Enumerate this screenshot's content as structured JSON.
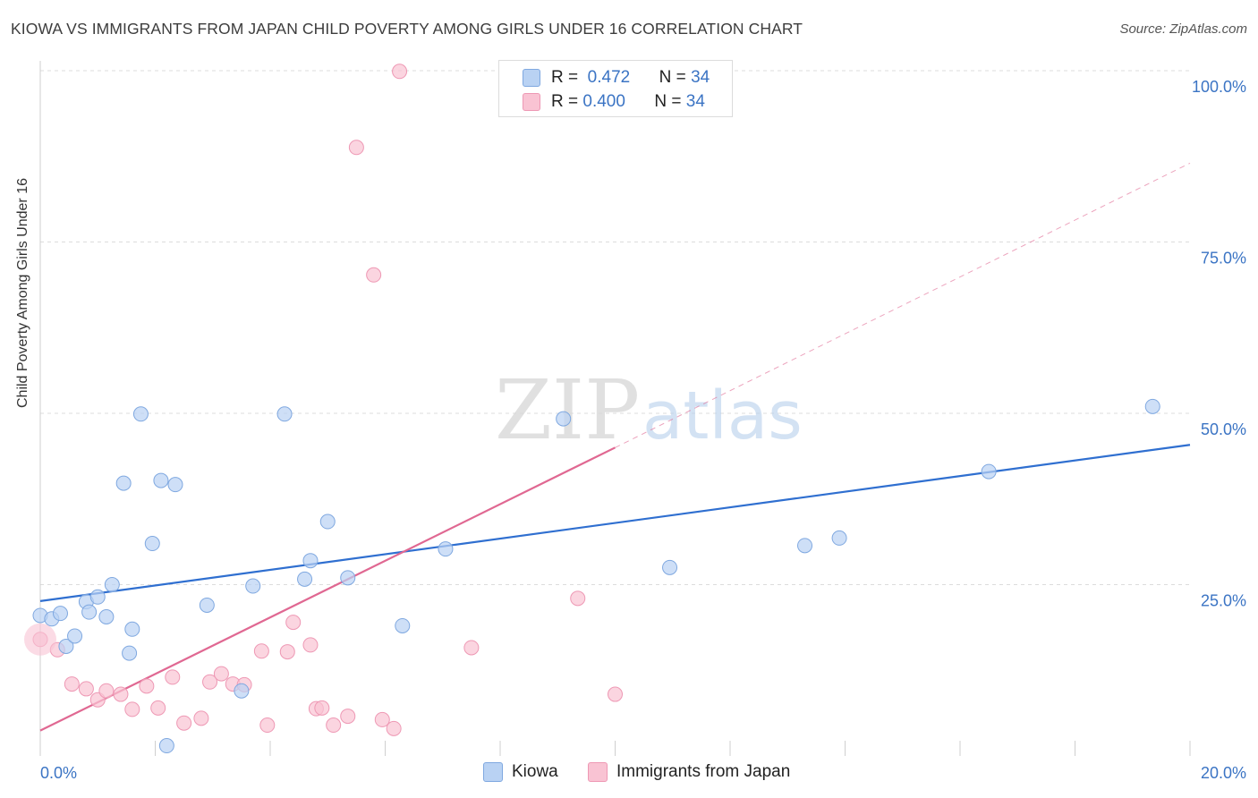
{
  "title": "KIOWA VS IMMIGRANTS FROM JAPAN CHILD POVERTY AMONG GIRLS UNDER 16 CORRELATION CHART",
  "source": "Source: ZipAtlas.com",
  "watermark": {
    "zip": "ZIP",
    "atlas": "atlas"
  },
  "legend_stats": [
    {
      "r_label": "R =",
      "r_value": "0.472",
      "n_label": "N =",
      "n_value": "34"
    },
    {
      "r_label": "R =",
      "r_value": "0.400",
      "n_label": "N =",
      "n_value": "34"
    }
  ],
  "colors": {
    "kiowa_fill": "#b9d2f3",
    "kiowa_stroke": "#7fa8e0",
    "kiowa_line": "#2f6fd0",
    "japan_fill": "#f9c3d3",
    "japan_stroke": "#ee98b4",
    "japan_line": "#e06892",
    "tick_label": "#3b74c4",
    "grid": "#dcdcdc"
  },
  "chart_data": {
    "type": "scatter",
    "title": "KIOWA VS IMMIGRANTS FROM JAPAN CHILD POVERTY AMONG GIRLS UNDER 16 CORRELATION CHART",
    "xlabel": "",
    "ylabel": "Child Poverty Among Girls Under 16",
    "xlim": [
      0,
      20
    ],
    "ylim": [
      0,
      100
    ],
    "x_ticks": [
      "0.0%",
      "20.0%"
    ],
    "y_ticks": [
      "25.0%",
      "50.0%",
      "75.0%",
      "100.0%"
    ],
    "y_tick_values": [
      25,
      50,
      75,
      100
    ],
    "legend_placement": "bottom",
    "grid": true,
    "series": [
      {
        "name": "Kiowa",
        "points": [
          [
            0.0,
            20.5
          ],
          [
            0.2,
            20.0
          ],
          [
            0.35,
            20.8
          ],
          [
            0.45,
            16.0
          ],
          [
            0.6,
            17.5
          ],
          [
            0.8,
            22.5
          ],
          [
            0.85,
            21.0
          ],
          [
            1.0,
            23.2
          ],
          [
            1.15,
            20.3
          ],
          [
            1.25,
            25.0
          ],
          [
            1.45,
            39.8
          ],
          [
            1.55,
            15.0
          ],
          [
            1.6,
            18.5
          ],
          [
            1.75,
            49.9
          ],
          [
            1.95,
            31.0
          ],
          [
            2.1,
            40.2
          ],
          [
            2.35,
            39.6
          ],
          [
            2.2,
            1.5
          ],
          [
            2.9,
            22.0
          ],
          [
            3.5,
            9.5
          ],
          [
            3.7,
            24.8
          ],
          [
            4.25,
            49.9
          ],
          [
            4.6,
            25.8
          ],
          [
            4.7,
            28.5
          ],
          [
            5.0,
            34.2
          ],
          [
            5.35,
            26.0
          ],
          [
            6.3,
            19.0
          ],
          [
            7.05,
            30.2
          ],
          [
            9.1,
            49.2
          ],
          [
            10.95,
            27.5
          ],
          [
            13.3,
            30.7
          ],
          [
            13.9,
            31.8
          ],
          [
            16.5,
            41.5
          ],
          [
            19.35,
            51.0
          ]
        ],
        "trend": {
          "x": [
            0,
            20
          ],
          "y": [
            22.6,
            45.4
          ]
        }
      },
      {
        "name": "Immigrants from Japan",
        "points": [
          [
            0.0,
            17.0
          ],
          [
            0.3,
            15.5
          ],
          [
            0.55,
            10.5
          ],
          [
            0.8,
            9.8
          ],
          [
            1.0,
            8.2
          ],
          [
            1.15,
            9.5
          ],
          [
            1.4,
            9.0
          ],
          [
            1.6,
            6.8
          ],
          [
            1.85,
            10.2
          ],
          [
            2.05,
            7.0
          ],
          [
            2.3,
            11.5
          ],
          [
            2.5,
            4.8
          ],
          [
            2.8,
            5.5
          ],
          [
            2.95,
            10.8
          ],
          [
            3.15,
            12.0
          ],
          [
            3.35,
            10.5
          ],
          [
            3.55,
            10.4
          ],
          [
            3.85,
            15.3
          ],
          [
            3.95,
            4.5
          ],
          [
            4.3,
            15.2
          ],
          [
            4.4,
            19.5
          ],
          [
            4.7,
            16.2
          ],
          [
            4.8,
            6.9
          ],
          [
            4.9,
            7.0
          ],
          [
            5.1,
            4.5
          ],
          [
            5.35,
            5.8
          ],
          [
            5.5,
            88.8
          ],
          [
            5.8,
            70.2
          ],
          [
            5.95,
            5.3
          ],
          [
            6.15,
            4.0
          ],
          [
            6.25,
            99.9
          ],
          [
            7.5,
            15.8
          ],
          [
            9.35,
            23.0
          ],
          [
            10.0,
            9.0
          ]
        ],
        "trend": {
          "x": [
            0,
            10
          ],
          "y": [
            3.7,
            45.0
          ],
          "dashed_extension": {
            "x": [
              10,
              20
            ],
            "y": [
              45.0,
              86.5
            ]
          }
        }
      }
    ]
  }
}
